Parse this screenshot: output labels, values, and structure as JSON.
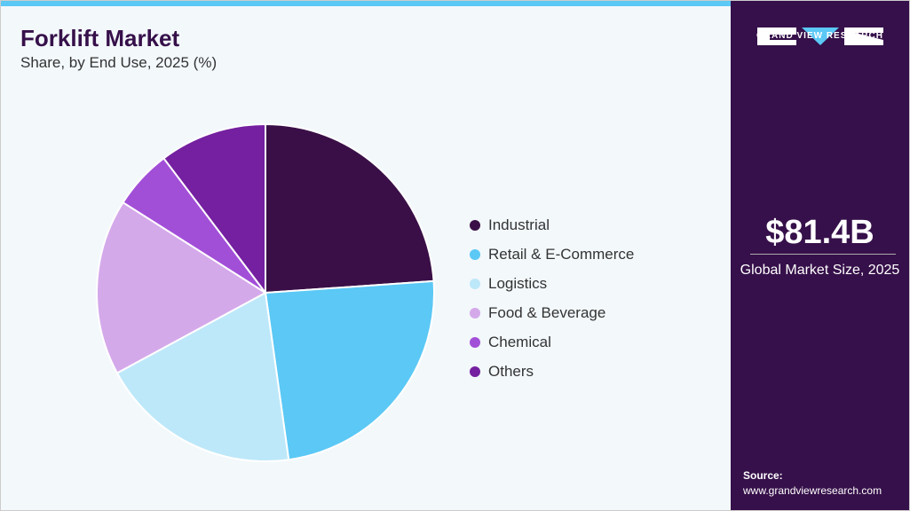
{
  "chart_data": {
    "type": "pie",
    "title": "Forklift Market",
    "subtitle": "Share, by End Use, 2025 (%)",
    "categories": [
      "Industrial",
      "Retail & E-Commerce",
      "Logistics",
      "Food & Beverage",
      "Chemical",
      "Others"
    ],
    "values": [
      23.9,
      23.9,
      19.3,
      16.9,
      5.7,
      10.3
    ],
    "colors": [
      "#3a0f47",
      "#5bc8f5",
      "#bde8f9",
      "#d4a9ea",
      "#a24fd8",
      "#7420a0"
    ],
    "legend_position": "right"
  },
  "side": {
    "brand": "GRAND VIEW RESEARCH",
    "market_size": "$81.4B",
    "market_size_label": "Global Market Size, 2025",
    "source_label": "Source:",
    "source_url": "www.grandviewresearch.com"
  }
}
